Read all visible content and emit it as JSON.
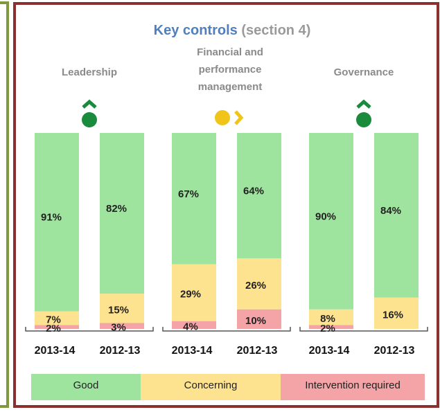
{
  "chart_data": {
    "type": "stacked_bar",
    "title": "Key controls",
    "subtitle": "(section 4)",
    "groups": [
      "Leadership",
      "Financial and performance management",
      "Governance"
    ],
    "categories": [
      "2013-14",
      "2012-13",
      "2013-14",
      "2012-13",
      "2013-14",
      "2012-13"
    ],
    "ylim": [
      0,
      100
    ],
    "series": [
      {
        "name": "Intervention required",
        "color": "#f4a3a6",
        "values": [
          2,
          3,
          4,
          10,
          2,
          null
        ],
        "value_labels": [
          "2%",
          "3%",
          "4%",
          "10%",
          "2%",
          null
        ]
      },
      {
        "name": "Concerning",
        "color": "#fde28f",
        "values": [
          7,
          15,
          29,
          26,
          8,
          16
        ],
        "value_labels": [
          "7%",
          "15%",
          "29%",
          "26%",
          "8%",
          "16%"
        ]
      },
      {
        "name": "Good",
        "color": "#9ee49e",
        "values": [
          91,
          82,
          67,
          64,
          90,
          84
        ],
        "value_labels": [
          "91%",
          "82%",
          "67%",
          "64%",
          "90%",
          "84%"
        ]
      }
    ],
    "legend_order": [
      "Good",
      "Concerning",
      "Intervention required"
    ]
  }
}
